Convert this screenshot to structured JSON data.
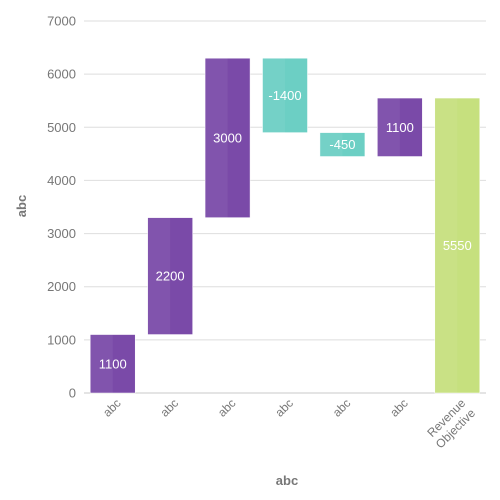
{
  "chart_data": {
    "type": "bar",
    "subtype": "waterfall",
    "title": "",
    "xlabel": "abc",
    "ylabel": "abc",
    "ylim": [
      0,
      7000
    ],
    "yticks": [
      0,
      1000,
      2000,
      3000,
      4000,
      5000,
      6000,
      7000
    ],
    "grid": true,
    "legend": "none",
    "categories": [
      "abc",
      "abc",
      "abc",
      "abc",
      "abc",
      "abc",
      "Revenue Objective"
    ],
    "values": [
      1100,
      2200,
      3000,
      -1400,
      -450,
      1100,
      5550
    ],
    "data_labels": [
      "1100",
      "2200",
      "3000",
      "-1400",
      "-450",
      "1100",
      "5550"
    ],
    "kinds": [
      "increase",
      "increase",
      "increase",
      "decrease",
      "decrease",
      "increase",
      "total"
    ],
    "colors": {
      "increase": "#7a4aa8",
      "decrease": "#6ccfc4",
      "total": "#c6e07e"
    }
  }
}
